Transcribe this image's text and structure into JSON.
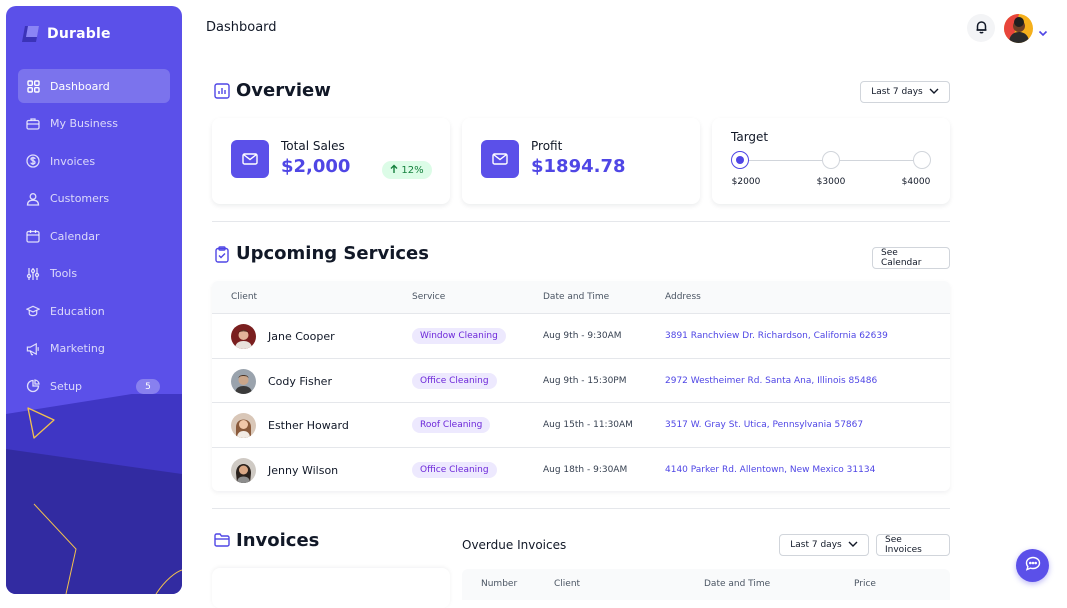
{
  "brand": {
    "name": "Durable"
  },
  "sidebar": {
    "items": [
      {
        "label": "Dashboard",
        "icon": "grid-icon",
        "active": true
      },
      {
        "label": "My Business",
        "icon": "briefcase-icon"
      },
      {
        "label": "Invoices",
        "icon": "dollar-icon"
      },
      {
        "label": "Customers",
        "icon": "users-icon"
      },
      {
        "label": "Calendar",
        "icon": "calendar-icon"
      },
      {
        "label": "Tools",
        "icon": "sliders-icon"
      },
      {
        "label": "Education",
        "icon": "graduation-icon"
      },
      {
        "label": "Marketing",
        "icon": "megaphone-icon"
      },
      {
        "label": "Setup",
        "icon": "pie-icon",
        "badge": "5"
      }
    ]
  },
  "header": {
    "title": "Dashboard"
  },
  "overview": {
    "title": "Overview",
    "range": "Last 7 days",
    "total_sales": {
      "label": "Total Sales",
      "value": "$2,000",
      "growth": "12%"
    },
    "profit": {
      "label": "Profit",
      "value": "$1894.78"
    },
    "target": {
      "label": "Target",
      "steps": [
        "$2000",
        "$3000",
        "$4000"
      ],
      "current_step": 1
    }
  },
  "services": {
    "title": "Upcoming Services",
    "button": "See Calendar",
    "columns": [
      "Client",
      "Service",
      "Date and Time",
      "Address"
    ],
    "rows": [
      {
        "client": "Jane Cooper",
        "service": "Window Cleaning",
        "datetime": "Aug 9th - 9:30AM",
        "address": "3891 Ranchview Dr. Richardson, California 62639"
      },
      {
        "client": "Cody Fisher",
        "service": "Office Cleaning",
        "datetime": "Aug 9th - 15:30PM",
        "address": "2972 Westheimer Rd. Santa Ana, Illinois 85486"
      },
      {
        "client": "Esther Howard",
        "service": "Roof Cleaning",
        "datetime": "Aug 15th - 11:30AM",
        "address": "3517 W. Gray St. Utica, Pennsylvania 57867"
      },
      {
        "client": "Jenny Wilson",
        "service": "Office Cleaning",
        "datetime": "Aug 18th - 9:30AM",
        "address": "4140 Parker Rd. Allentown, New Mexico 31134"
      }
    ]
  },
  "invoices": {
    "title": "Invoices",
    "overdue_title": "Overdue Invoices",
    "range": "Last 7 days",
    "button": "See Invoices",
    "columns": [
      "Number",
      "Client",
      "Date and Time",
      "Price"
    ]
  },
  "colors": {
    "brand": "#5b50e9",
    "accent": "#4f46e5",
    "badge_bg": "#ede9fe",
    "success": "#15803d"
  }
}
